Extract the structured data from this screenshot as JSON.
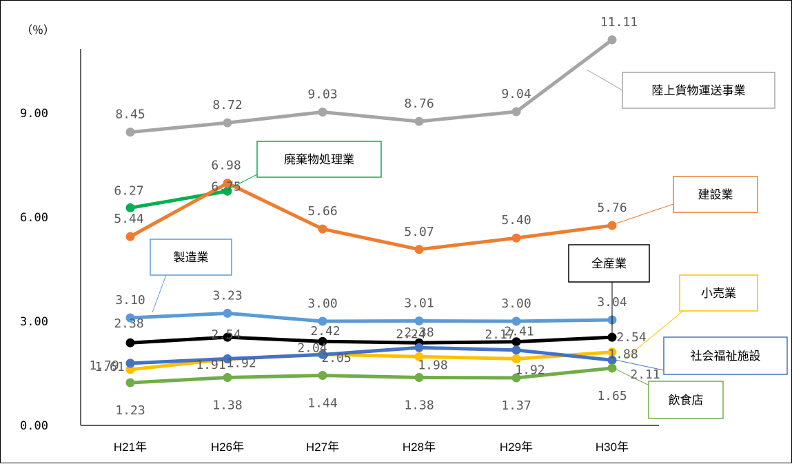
{
  "chart_data": {
    "type": "line",
    "unit_label": "（％）",
    "categories": [
      "H21年",
      "H26年",
      "H27年",
      "H28年",
      "H29年",
      "H30年"
    ],
    "ylim": [
      0,
      12
    ],
    "yticks": [
      "0.00",
      "3.00",
      "6.00",
      "9.00"
    ],
    "ytick_values": [
      0,
      3,
      6,
      9
    ],
    "series": [
      {
        "name": "陸上貨物運送事業",
        "color": "#A5A5A5",
        "values": [
          8.45,
          8.72,
          9.03,
          8.76,
          9.04,
          11.11
        ],
        "labels": [
          "8.45",
          "8.72",
          "9.03",
          "8.76",
          "9.04",
          "11.11"
        ]
      },
      {
        "name": "廃棄物処理業",
        "color": "#00B050",
        "values": [
          6.27,
          6.75,
          null,
          null,
          null,
          null
        ],
        "labels": [
          "6.27",
          "6.75",
          null,
          null,
          null,
          null
        ]
      },
      {
        "name": "建設業",
        "color": "#ED7D31",
        "values": [
          5.44,
          6.98,
          5.66,
          5.07,
          5.4,
          5.76
        ],
        "labels": [
          "5.44",
          "6.98",
          "5.66",
          "5.07",
          "5.40",
          "5.76"
        ]
      },
      {
        "name": "製造業",
        "color": "#5B9BD5",
        "values": [
          3.1,
          3.23,
          3.0,
          3.01,
          3.0,
          3.04
        ],
        "labels": [
          "3.10",
          "3.23",
          "3.00",
          "3.01",
          "3.00",
          "3.04"
        ]
      },
      {
        "name": "全産業",
        "color": "#000000",
        "values": [
          2.38,
          2.54,
          2.42,
          2.38,
          2.41,
          2.54
        ],
        "labels": [
          "2.38",
          "2.54",
          "2.42",
          "2.38",
          "2.41",
          "2.54"
        ]
      },
      {
        "name": "小売業",
        "color": "#FFC000",
        "values": [
          1.61,
          1.91,
          2.05,
          1.98,
          1.92,
          2.11
        ],
        "labels": [
          "1.61",
          "1.91",
          "2.05",
          "1.98",
          "1.92",
          "2.11"
        ]
      },
      {
        "name": "社会福祉施設",
        "color": "#4472C4",
        "values": [
          1.79,
          1.92,
          2.04,
          2.24,
          2.17,
          1.88
        ],
        "labels": [
          "1.79",
          "1.92",
          "2.04",
          "2.24",
          "2.17",
          "1.88"
        ]
      },
      {
        "name": "飲食店",
        "color": "#70AD47",
        "values": [
          1.23,
          1.38,
          1.44,
          1.38,
          1.37,
          1.65
        ],
        "labels": [
          "1.23",
          "1.38",
          "1.44",
          "1.38",
          "1.37",
          "1.65"
        ]
      }
    ]
  }
}
